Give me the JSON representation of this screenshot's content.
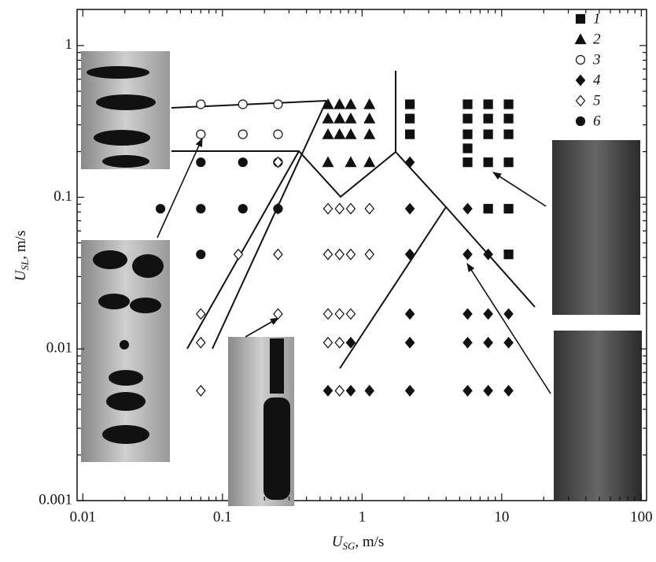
{
  "chart_data": {
    "type": "scatter",
    "xscale": "log",
    "yscale": "log",
    "xlabel": [
      "U",
      "SG",
      ", m/s"
    ],
    "ylabel": [
      "U",
      "SL",
      ", m/s"
    ],
    "xlim": [
      0.0091,
      109
    ],
    "ylim": [
      0.001,
      1.73
    ],
    "xticks": [
      0.01,
      0.1,
      1,
      10,
      100
    ],
    "yticks": [
      0.001,
      0.01,
      0.1,
      1
    ],
    "legend": "top-right",
    "series": [
      {
        "name": "1",
        "marker": "square",
        "filled": true,
        "color": "#111",
        "x": [
          2.2,
          2.2,
          2.2,
          5.7,
          5.7,
          5.7,
          5.7,
          5.7,
          8.0,
          8.0,
          8.0,
          8.0,
          8.0,
          11.2,
          11.2,
          11.2,
          11.2,
          11.2,
          11.2
        ],
        "y": [
          0.41,
          0.33,
          0.26,
          0.41,
          0.33,
          0.26,
          0.21,
          0.17,
          0.41,
          0.33,
          0.26,
          0.17,
          0.084,
          0.41,
          0.33,
          0.26,
          0.17,
          0.084,
          0.042
        ]
      },
      {
        "name": "2",
        "marker": "triangle",
        "filled": true,
        "color": "#111",
        "x": [
          0.57,
          0.57,
          0.57,
          0.57,
          0.69,
          0.69,
          0.69,
          0.83,
          0.83,
          0.83,
          0.83,
          1.13,
          1.13,
          1.13,
          1.13
        ],
        "y": [
          0.41,
          0.33,
          0.26,
          0.17,
          0.41,
          0.33,
          0.26,
          0.41,
          0.33,
          0.26,
          0.17,
          0.41,
          0.33,
          0.26,
          0.17
        ]
      },
      {
        "name": "3",
        "marker": "circle",
        "filled": false,
        "color": "#111",
        "x": [
          0.07,
          0.07,
          0.14,
          0.14,
          0.25,
          0.25,
          0.25
        ],
        "y": [
          0.41,
          0.26,
          0.41,
          0.26,
          0.41,
          0.26,
          0.17
        ]
      },
      {
        "name": "4",
        "marker": "diamond",
        "filled": true,
        "color": "#111",
        "x": [
          2.2,
          2.2,
          2.2,
          2.2,
          2.2,
          2.2,
          0.57,
          0.83,
          0.83,
          1.13,
          5.7,
          5.7,
          5.7,
          5.7,
          5.7,
          8.0,
          8.0,
          8.0,
          8.0,
          11.2,
          11.2,
          11.2
        ],
        "y": [
          0.17,
          0.084,
          0.042,
          0.017,
          0.011,
          0.0053,
          0.0053,
          0.011,
          0.0053,
          0.0053,
          0.084,
          0.042,
          0.017,
          0.011,
          0.0053,
          0.042,
          0.017,
          0.011,
          0.0053,
          0.017,
          0.011,
          0.0053
        ]
      },
      {
        "name": "5",
        "marker": "diamond",
        "filled": false,
        "color": "#111",
        "x": [
          0.25,
          0.25,
          0.25,
          0.25,
          0.07,
          0.07,
          0.07,
          0.13,
          0.57,
          0.57,
          0.57,
          0.57,
          0.69,
          0.69,
          0.69,
          0.69,
          0.69,
          0.83,
          0.83,
          0.83,
          1.13,
          1.13
        ],
        "y": [
          0.17,
          0.084,
          0.042,
          0.017,
          0.017,
          0.011,
          0.0053,
          0.042,
          0.084,
          0.042,
          0.017,
          0.011,
          0.084,
          0.042,
          0.017,
          0.011,
          0.0053,
          0.084,
          0.042,
          0.017,
          0.084,
          0.042
        ]
      },
      {
        "name": "6",
        "marker": "circle",
        "filled": true,
        "color": "#111",
        "x": [
          0.036,
          0.07,
          0.07,
          0.07,
          0.14,
          0.14,
          0.25
        ],
        "y": [
          0.084,
          0.17,
          0.084,
          0.042,
          0.17,
          0.084,
          0.084
        ]
      }
    ]
  }
}
